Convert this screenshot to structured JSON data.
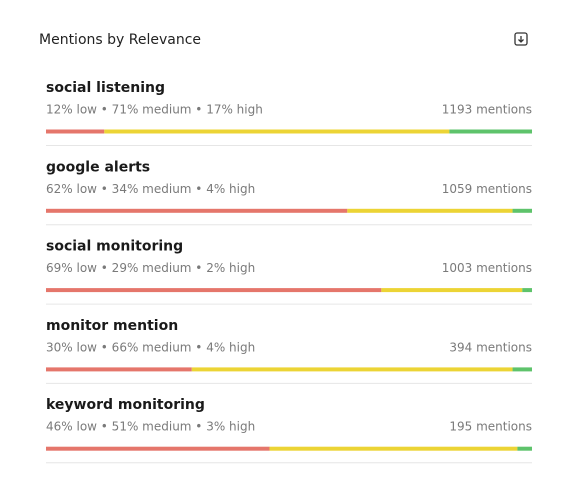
{
  "title": "Mentions by Relevance",
  "items": [
    {
      "name": "social listening",
      "breakdown": "12% low • 71% medium • 17% high",
      "values": [
        12,
        71,
        17
      ],
      "mentions": "1193 mentions"
    },
    {
      "name": "google alerts",
      "breakdown": "62% low • 34% medium • 4% high",
      "values": [
        62,
        34,
        4
      ],
      "mentions": "1059 mentions"
    },
    {
      "name": "social monitoring",
      "breakdown": "69% low • 29% medium • 2% high",
      "values": [
        69,
        29,
        2
      ],
      "mentions": "1003 mentions"
    },
    {
      "name": "monitor mention",
      "breakdown": "30% low • 66% medium • 4% high",
      "values": [
        30,
        66,
        4
      ],
      "mentions": "394 mentions"
    },
    {
      "name": "keyword monitoring",
      "breakdown": "46% low • 51% medium • 3% high",
      "values": [
        46,
        51,
        3
      ],
      "mentions": "195 mentions"
    }
  ],
  "colors": [
    "#e5766b",
    "#ecd435",
    "#5ec36b"
  ]
}
